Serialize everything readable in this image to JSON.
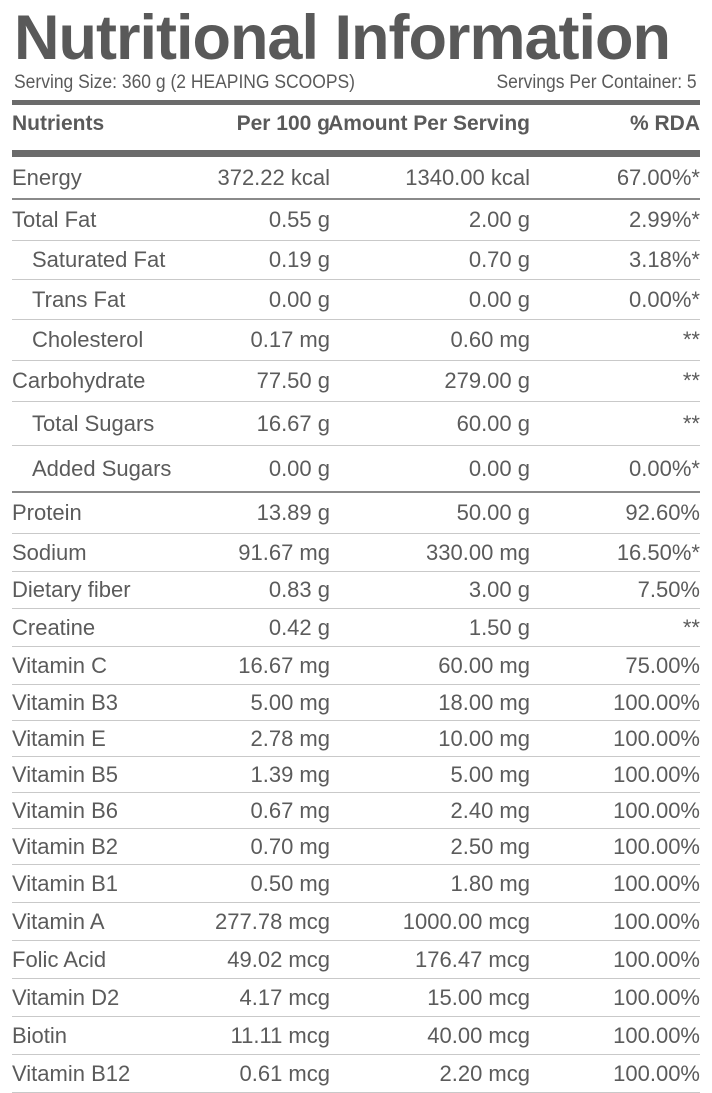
{
  "title": "Nutritional Information",
  "serving_size": "Serving Size: 360 g (2 HEAPING SCOOPS)",
  "servings_per_container": "Servings Per Container: 5",
  "columns": {
    "nutrient": "Nutrients",
    "per_100g": "Per 100 g",
    "per_serving": "Amount Per Serving",
    "rda": "% RDA"
  },
  "rows": [
    {
      "name": "Energy",
      "per_100g": "372.22 kcal",
      "per_serving": "1340.00 kcal",
      "rda": "67.00%*"
    },
    {
      "name": "Total Fat",
      "per_100g": "0.55 g",
      "per_serving": "2.00 g",
      "rda": "2.99%*"
    },
    {
      "name": "Saturated Fat",
      "per_100g": "0.19 g",
      "per_serving": "0.70 g",
      "rda": "3.18%*"
    },
    {
      "name": "Trans Fat",
      "per_100g": "0.00 g",
      "per_serving": "0.00 g",
      "rda": "0.00%*"
    },
    {
      "name": "Cholesterol",
      "per_100g": "0.17 mg",
      "per_serving": "0.60 mg",
      "rda": "**"
    },
    {
      "name": "Carbohydrate",
      "per_100g": "77.50 g",
      "per_serving": "279.00 g",
      "rda": "**"
    },
    {
      "name": "Total Sugars",
      "per_100g": "16.67 g",
      "per_serving": "60.00 g",
      "rda": "**"
    },
    {
      "name": "Added Sugars",
      "per_100g": "0.00 g",
      "per_serving": "0.00 g",
      "rda": "0.00%*"
    },
    {
      "name": "Protein",
      "per_100g": "13.89 g",
      "per_serving": "50.00 g",
      "rda": "92.60%"
    },
    {
      "name": "Sodium",
      "per_100g": "91.67 mg",
      "per_serving": "330.00 mg",
      "rda": "16.50%*"
    },
    {
      "name": "Dietary fiber",
      "per_100g": "0.83 g",
      "per_serving": "3.00 g",
      "rda": "7.50%"
    },
    {
      "name": "Creatine",
      "per_100g": "0.42 g",
      "per_serving": "1.50 g",
      "rda": "**"
    },
    {
      "name": "Vitamin C",
      "per_100g": "16.67 mg",
      "per_serving": "60.00 mg",
      "rda": "75.00%"
    },
    {
      "name": "Vitamin B3",
      "per_100g": "5.00 mg",
      "per_serving": "18.00 mg",
      "rda": "100.00%"
    },
    {
      "name": "Vitamin E",
      "per_100g": "2.78 mg",
      "per_serving": "10.00 mg",
      "rda": "100.00%"
    },
    {
      "name": "Vitamin B5",
      "per_100g": "1.39 mg",
      "per_serving": "5.00 mg",
      "rda": "100.00%"
    },
    {
      "name": "Vitamin B6",
      "per_100g": "0.67 mg",
      "per_serving": "2.40 mg",
      "rda": "100.00%"
    },
    {
      "name": "Vitamin B2",
      "per_100g": "0.70 mg",
      "per_serving": "2.50 mg",
      "rda": "100.00%"
    },
    {
      "name": "Vitamin B1",
      "per_100g": "0.50 mg",
      "per_serving": "1.80 mg",
      "rda": "100.00%"
    },
    {
      "name": "Vitamin A",
      "per_100g": "277.78 mcg",
      "per_serving": "1000.00 mcg",
      "rda": "100.00%"
    },
    {
      "name": "Folic Acid",
      "per_100g": "49.02 mcg",
      "per_serving": "176.47 mcg",
      "rda": "100.00%"
    },
    {
      "name": "Vitamin D2",
      "per_100g": "4.17 mcg",
      "per_serving": "15.00 mcg",
      "rda": "100.00%"
    },
    {
      "name": "Biotin",
      "per_100g": "11.11 mcg",
      "per_serving": "40.00 mcg",
      "rda": "100.00%"
    },
    {
      "name": "Vitamin B12",
      "per_100g": "0.61 mcg",
      "per_serving": "2.20 mcg",
      "rda": "100.00%"
    }
  ]
}
